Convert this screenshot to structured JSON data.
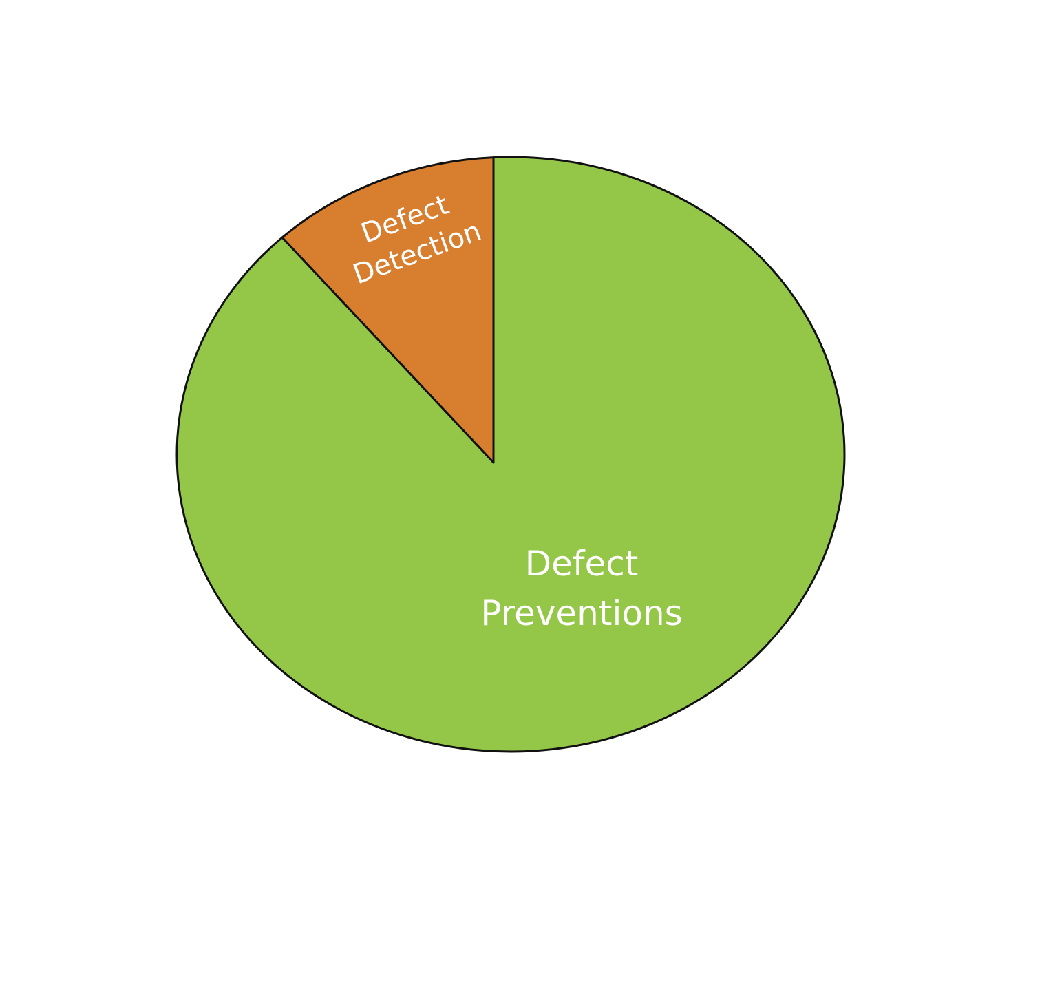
{
  "chart_data": {
    "type": "pie",
    "title": "",
    "slices": [
      {
        "label_lines": [
          "Defect",
          "Detection"
        ],
        "value": 12,
        "color": "#D77E2F"
      },
      {
        "label_lines": [
          "Defect",
          "Preventions"
        ],
        "value": 88,
        "color": "#94C748"
      }
    ],
    "legend": "none"
  }
}
